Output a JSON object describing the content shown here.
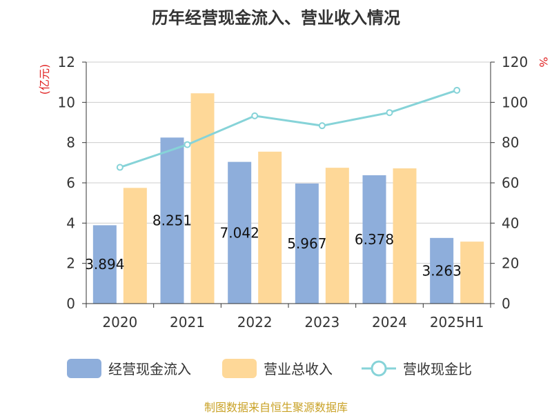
{
  "chart_data": {
    "type": "bar",
    "title": "历年经营现金流入、营业收入情况",
    "categories": [
      "2020",
      "2021",
      "2022",
      "2023",
      "2024",
      "2025H1"
    ],
    "y_left_unit": "(亿元)",
    "y_right_unit": "%",
    "ylim_left": [
      0,
      12
    ],
    "ylim_right": [
      0,
      120
    ],
    "y_left_ticks": [
      "0",
      "2",
      "4",
      "6",
      "8",
      "10",
      "12"
    ],
    "y_right_ticks": [
      "0",
      "20",
      "40",
      "60",
      "80",
      "100",
      "120"
    ],
    "grid": true,
    "legend_position": "bottom",
    "series": [
      {
        "name": "经营现金流入",
        "kind": "bar",
        "axis": "left",
        "color": "#8eaedb",
        "values": [
          3.894,
          8.251,
          7.042,
          5.967,
          6.378,
          3.263
        ],
        "labels": [
          "3.894",
          "8.251",
          "7.042",
          "5.967",
          "6.378",
          "3.263"
        ]
      },
      {
        "name": "营业总收入",
        "kind": "bar",
        "axis": "left",
        "color": "#fed898",
        "values": [
          5.75,
          10.45,
          7.55,
          6.75,
          6.72,
          3.08
        ]
      },
      {
        "name": "营收现金比",
        "kind": "line",
        "axis": "right",
        "color": "#86d3d8",
        "values": [
          67.7,
          79.0,
          93.3,
          88.4,
          94.9,
          106.0
        ]
      }
    ],
    "source": "制图数据来自恒生聚源数据库"
  }
}
